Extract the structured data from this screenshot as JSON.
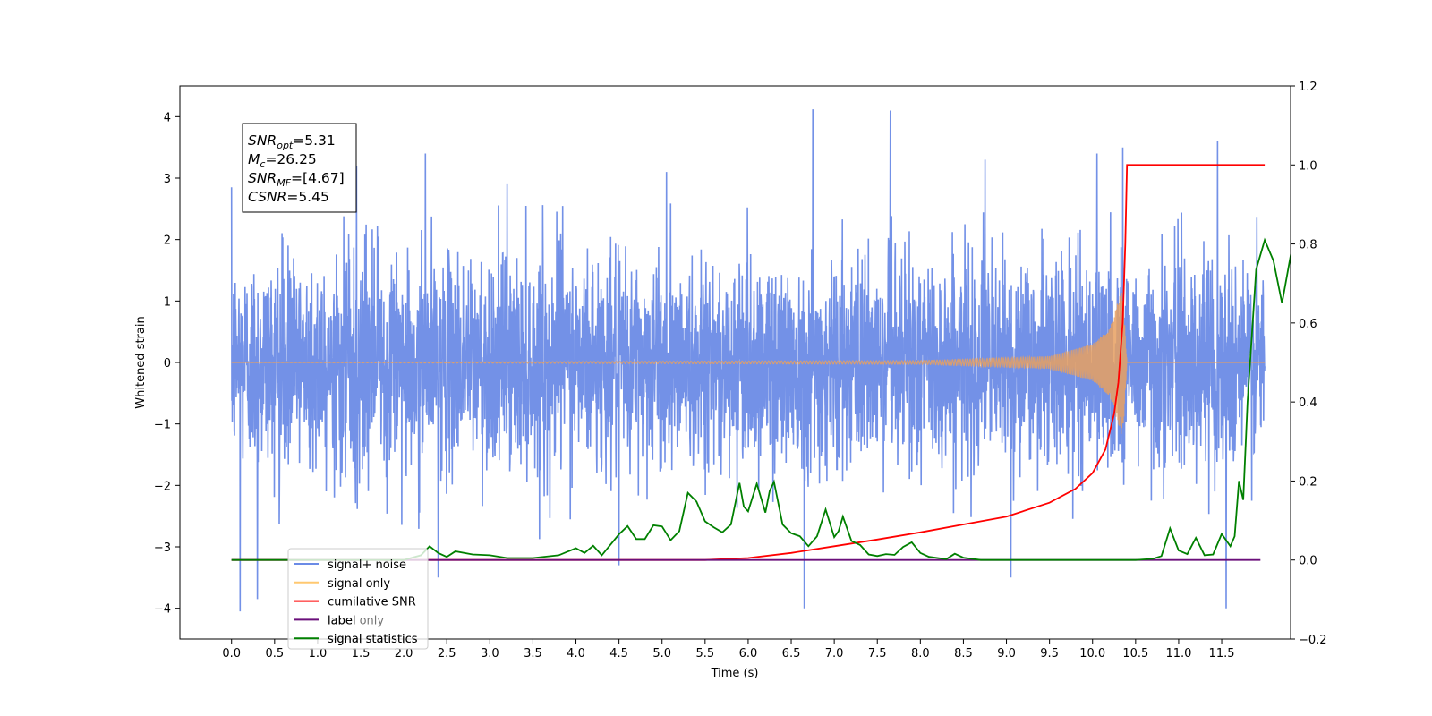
{
  "chart_data": {
    "type": "line",
    "title": "",
    "xlabel": "Time (s)",
    "ylabel": "Whitened strain",
    "ylabel_right": "",
    "xlim": [
      -0.6,
      12.3
    ],
    "ylim": [
      -4.5,
      4.5
    ],
    "ylim_right": [
      -0.2,
      1.2
    ],
    "x_ticks": [
      0.0,
      0.5,
      1.0,
      1.5,
      2.0,
      2.5,
      3.0,
      3.5,
      4.0,
      4.5,
      5.0,
      5.5,
      6.0,
      6.5,
      7.0,
      7.5,
      8.0,
      8.5,
      9.0,
      9.5,
      10.0,
      10.5,
      11.0,
      11.5
    ],
    "x_tick_labels": [
      "0.0",
      "0.5",
      "1.0",
      "1.5",
      "2.0",
      "2.5",
      "3.0",
      "3.5",
      "4.0",
      "4.5",
      "5.0",
      "5.5",
      "6.0",
      "6.5",
      "7.0",
      "7.5",
      "8.0",
      "8.5",
      "9.0",
      "9.5",
      "10.0",
      "10.5",
      "11.0",
      "11.5"
    ],
    "y_ticks": [
      -4,
      -3,
      -2,
      -1,
      0,
      1,
      2,
      3,
      4
    ],
    "y_tick_labels": [
      "−4",
      "−3",
      "−2",
      "−1",
      "0",
      "1",
      "2",
      "3",
      "4"
    ],
    "y_right_ticks": [
      -0.2,
      0.0,
      0.2,
      0.4,
      0.6,
      0.8,
      1.0,
      1.2
    ],
    "y_right_tick_labels": [
      "−0.2",
      "0.0",
      "0.2",
      "0.4",
      "0.6",
      "0.8",
      "1.0",
      "1.2"
    ],
    "grid": false,
    "legend_position": "bottom-left",
    "series": [
      {
        "name": "signal+ noise",
        "axis": "left",
        "color": "#6b8be6",
        "style": "dense-noise",
        "x_range": [
          0.0,
          12.0
        ],
        "noise_std": 0.85,
        "peaks": [
          {
            "x": 0.0,
            "y": 2.85
          },
          {
            "x": 0.1,
            "y": -4.05
          },
          {
            "x": 0.3,
            "y": -3.85
          },
          {
            "x": 2.25,
            "y": 3.4
          },
          {
            "x": 2.4,
            "y": -3.5
          },
          {
            "x": 5.05,
            "y": 3.1
          },
          {
            "x": 6.75,
            "y": 4.12
          },
          {
            "x": 6.65,
            "y": -4.0
          },
          {
            "x": 7.65,
            "y": 4.1
          },
          {
            "x": 10.35,
            "y": 3.5
          },
          {
            "x": 11.45,
            "y": 3.6
          },
          {
            "x": 11.55,
            "y": -4.0
          },
          {
            "x": 4.5,
            "y": -3.3
          },
          {
            "x": 8.75,
            "y": 3.3
          },
          {
            "x": 9.05,
            "y": -3.5
          },
          {
            "x": 10.05,
            "y": 3.4
          },
          {
            "x": 1.45,
            "y": 3.2
          },
          {
            "x": 3.2,
            "y": 2.9
          }
        ]
      },
      {
        "name": "signal only",
        "axis": "left",
        "color": "#e8a060",
        "style": "chirp",
        "x_range": [
          0.0,
          12.0
        ],
        "merger_time": 10.4,
        "peak_amplitude": 1.25,
        "points": [
          [
            0.0,
            0.0
          ],
          [
            8.0,
            0.03
          ],
          [
            9.5,
            0.1
          ],
          [
            10.0,
            0.3
          ],
          [
            10.2,
            0.55
          ],
          [
            10.35,
            1.25
          ],
          [
            10.4,
            0.0
          ],
          [
            12.0,
            0.0
          ]
        ]
      },
      {
        "name": "cumilative SNR",
        "axis": "right",
        "color": "#ff0000",
        "points": [
          [
            0.0,
            0.0
          ],
          [
            5.5,
            0.0
          ],
          [
            6.0,
            0.005
          ],
          [
            6.5,
            0.018
          ],
          [
            7.0,
            0.035
          ],
          [
            7.5,
            0.052
          ],
          [
            8.0,
            0.07
          ],
          [
            8.5,
            0.09
          ],
          [
            9.0,
            0.11
          ],
          [
            9.5,
            0.145
          ],
          [
            9.8,
            0.18
          ],
          [
            10.0,
            0.22
          ],
          [
            10.15,
            0.28
          ],
          [
            10.25,
            0.37
          ],
          [
            10.3,
            0.45
          ],
          [
            10.35,
            0.6
          ],
          [
            10.38,
            0.8
          ],
          [
            10.4,
            1.0
          ],
          [
            12.0,
            1.0
          ]
        ]
      },
      {
        "name": "label",
        "axis": "right",
        "color": "#6a0f7a",
        "points": [
          [
            0.0,
            0.0
          ],
          [
            11.95,
            0.0
          ]
        ]
      },
      {
        "name": "signal statistics",
        "axis": "right",
        "color": "#008000",
        "points": [
          [
            0.0,
            0.0
          ],
          [
            2.0,
            0.0
          ],
          [
            2.2,
            0.012
          ],
          [
            2.3,
            0.035
          ],
          [
            2.4,
            0.018
          ],
          [
            2.5,
            0.008
          ],
          [
            2.6,
            0.022
          ],
          [
            2.8,
            0.014
          ],
          [
            3.0,
            0.012
          ],
          [
            3.2,
            0.005
          ],
          [
            3.5,
            0.005
          ],
          [
            3.8,
            0.012
          ],
          [
            4.0,
            0.03
          ],
          [
            4.1,
            0.018
          ],
          [
            4.2,
            0.036
          ],
          [
            4.3,
            0.012
          ],
          [
            4.5,
            0.065
          ],
          [
            4.6,
            0.086
          ],
          [
            4.7,
            0.053
          ],
          [
            4.8,
            0.053
          ],
          [
            4.9,
            0.088
          ],
          [
            5.0,
            0.085
          ],
          [
            5.1,
            0.05
          ],
          [
            5.2,
            0.073
          ],
          [
            5.3,
            0.17
          ],
          [
            5.4,
            0.148
          ],
          [
            5.5,
            0.098
          ],
          [
            5.6,
            0.083
          ],
          [
            5.7,
            0.07
          ],
          [
            5.8,
            0.09
          ],
          [
            5.9,
            0.195
          ],
          [
            5.95,
            0.135
          ],
          [
            6.0,
            0.123
          ],
          [
            6.1,
            0.193
          ],
          [
            6.2,
            0.12
          ],
          [
            6.25,
            0.175
          ],
          [
            6.3,
            0.198
          ],
          [
            6.4,
            0.09
          ],
          [
            6.5,
            0.068
          ],
          [
            6.6,
            0.06
          ],
          [
            6.7,
            0.035
          ],
          [
            6.8,
            0.06
          ],
          [
            6.9,
            0.128
          ],
          [
            7.0,
            0.058
          ],
          [
            7.05,
            0.073
          ],
          [
            7.1,
            0.11
          ],
          [
            7.2,
            0.048
          ],
          [
            7.3,
            0.038
          ],
          [
            7.4,
            0.014
          ],
          [
            7.5,
            0.01
          ],
          [
            7.6,
            0.015
          ],
          [
            7.7,
            0.013
          ],
          [
            7.8,
            0.033
          ],
          [
            7.9,
            0.045
          ],
          [
            8.0,
            0.018
          ],
          [
            8.1,
            0.008
          ],
          [
            8.3,
            0.002
          ],
          [
            8.4,
            0.016
          ],
          [
            8.5,
            0.006
          ],
          [
            8.7,
            0.0
          ],
          [
            10.5,
            0.0
          ],
          [
            10.7,
            0.003
          ],
          [
            10.8,
            0.01
          ],
          [
            10.9,
            0.08
          ],
          [
            11.0,
            0.024
          ],
          [
            11.1,
            0.015
          ],
          [
            11.2,
            0.056
          ],
          [
            11.3,
            0.012
          ],
          [
            11.4,
            0.014
          ],
          [
            11.5,
            0.066
          ],
          [
            11.6,
            0.035
          ],
          [
            11.65,
            0.06
          ],
          [
            11.7,
            0.2
          ],
          [
            11.75,
            0.152
          ],
          [
            11.8,
            0.4
          ],
          [
            11.9,
            0.735
          ],
          [
            12.0,
            0.81
          ],
          [
            12.1,
            0.758
          ],
          [
            12.2,
            0.65
          ],
          [
            12.3,
            0.77
          ],
          [
            12.4,
            0.73
          ]
        ]
      }
    ],
    "legend": [
      {
        "label": "signal+ noise",
        "color": "#6b8be6"
      },
      {
        "label": "signal only",
        "color": "#ffc870"
      },
      {
        "label": "cumilative SNR",
        "color": "#ff0000"
      },
      {
        "label": "label",
        "color": "#6a0f7a"
      },
      {
        "label": "signal statistics",
        "color": "#008000"
      }
    ],
    "legend_hidden_texts": [
      {
        "text": "label only",
        "row": 3
      },
      {
        "text": "signal statistics",
        "row": 4
      }
    ],
    "annotation": {
      "lines": [
        {
          "main": "SNR",
          "sub": "opt",
          "rest": "=5.31"
        },
        {
          "main": "M",
          "sub": "c",
          "rest": "=26.25"
        },
        {
          "main": "SNR",
          "sub": "MF",
          "rest": "=[4.67]"
        },
        {
          "main": "CSNR",
          "sub": "",
          "rest": "=5.45"
        }
      ]
    }
  }
}
